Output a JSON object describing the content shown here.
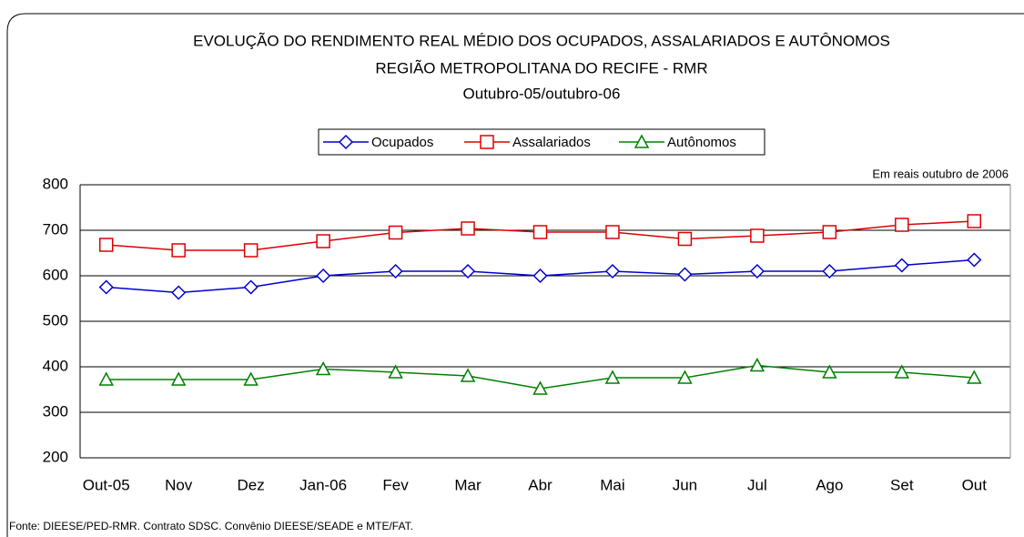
{
  "chart_data": {
    "type": "line",
    "title": "EVOLUÇÃO DO RENDIMENTO REAL MÉDIO DOS OCUPADOS, ASSALARIADOS E AUTÔNOMOS",
    "subtitle": "REGIÃO METROPOLITANA DO RECIFE - RMR",
    "period": "Outubro-05/outubro-06",
    "unit_note": "Em reais outubro de 2006",
    "source": "Fonte: DIEESE/PED-RMR. Contrato SDSC. Convênio DIEESE/SEADE e MTE/FAT.",
    "categories": [
      "Out-05",
      "Nov",
      "Dez",
      "Jan-06",
      "Fev",
      "Mar",
      "Abr",
      "Mai",
      "Jun",
      "Jul",
      "Ago",
      "Set",
      "Out"
    ],
    "series": [
      {
        "name": "Ocupados",
        "color": "#0000cc",
        "marker": "diamond",
        "values": [
          575,
          563,
          575,
          600,
          610,
          610,
          600,
          610,
          603,
          610,
          610,
          623,
          635
        ]
      },
      {
        "name": "Assalariados",
        "color": "#dd0000",
        "marker": "square",
        "values": [
          668,
          656,
          656,
          676,
          695,
          704,
          696,
          696,
          681,
          688,
          696,
          712,
          720
        ]
      },
      {
        "name": "Autônomos",
        "color": "#008000",
        "marker": "triangle",
        "values": [
          372,
          372,
          372,
          395,
          388,
          380,
          352,
          376,
          376,
          403,
          388,
          388,
          376
        ]
      }
    ],
    "ylim": [
      200,
      800
    ],
    "yticks": [
      200,
      300,
      400,
      500,
      600,
      700,
      800
    ],
    "grid": true,
    "legend": "top"
  }
}
